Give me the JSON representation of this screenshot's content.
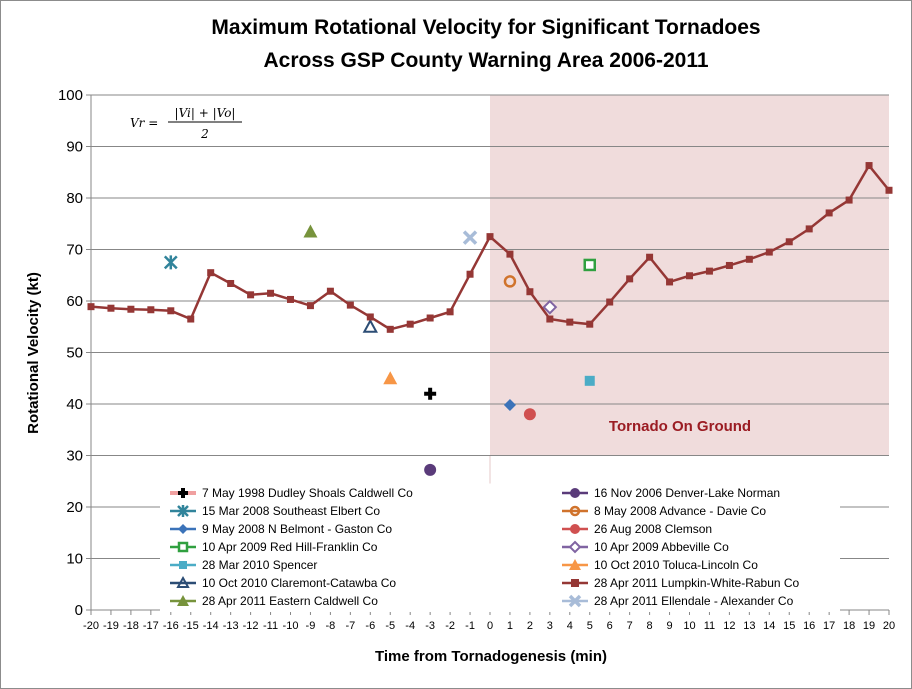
{
  "chart_data": {
    "type": "scatter",
    "title_line1": "Maximum Rotational Velocity for Significant Tornadoes",
    "title_line2": "Across GSP County Warning Area 2006-2011",
    "xlabel": "Time from Tornadogenesis (min)",
    "ylabel": "Rotational  Velocity  (kt)",
    "xlim": [
      -20,
      20
    ],
    "ylim": [
      0,
      100
    ],
    "yticks": [
      0,
      10,
      20,
      30,
      40,
      50,
      60,
      70,
      80,
      90,
      100
    ],
    "xticks": [
      -20,
      -19,
      -18,
      -17,
      -16,
      -15,
      -14,
      -13,
      -12,
      -11,
      -10,
      -9,
      -8,
      -7,
      -6,
      -5,
      -4,
      -3,
      -2,
      -1,
      0,
      1,
      2,
      3,
      4,
      5,
      6,
      7,
      8,
      9,
      10,
      11,
      12,
      13,
      14,
      15,
      16,
      17,
      18,
      19,
      20
    ],
    "grid": true,
    "shaded_region": {
      "x": [
        0,
        20
      ],
      "y": [
        30,
        100
      ],
      "color": "#f0dcdc",
      "label": "Tornado On Ground"
    },
    "formula": {
      "lhs": "Vr =",
      "numerator": "|Vi| + |Vo|",
      "denominator": "2"
    },
    "series": [
      {
        "name": "7 May 1998  Dudley Shoals Caldwell Co",
        "marker": "plus",
        "color": "#000000",
        "legend_color": "#f0a0a0",
        "x": [
          -3
        ],
        "y": [
          42
        ]
      },
      {
        "name": "16 Nov 2006  Denver-Lake Norman",
        "marker": "circle",
        "color": "#5a3b7a",
        "x": [
          -3
        ],
        "y": [
          27.2
        ]
      },
      {
        "name": "15 Mar 2008  Southeast Elbert Co",
        "marker": "star",
        "color": "#31849b",
        "x": [
          -16
        ],
        "y": [
          67.5
        ]
      },
      {
        "name": "8 May 2008  Advance - Davie Co",
        "marker": "circle-open",
        "color": "#d0732c",
        "x": [
          1
        ],
        "y": [
          63.8
        ]
      },
      {
        "name": "9 May 2008  N Belmont - Gaston Co",
        "marker": "diamond",
        "color": "#3b73b9",
        "x": [
          1
        ],
        "y": [
          39.8
        ]
      },
      {
        "name": "26 Aug 2008  Clemson",
        "marker": "circle",
        "color": "#d05050",
        "x": [
          2
        ],
        "y": [
          38
        ]
      },
      {
        "name": "10 Apr 2009  Red Hill-Franklin Co",
        "marker": "square-open",
        "color": "#30a040",
        "x": [
          5
        ],
        "y": [
          67
        ]
      },
      {
        "name": "10 Apr 2009  Abbeville Co",
        "marker": "diamond-open",
        "color": "#8064a2",
        "x": [
          3
        ],
        "y": [
          58.8
        ]
      },
      {
        "name": "28 Mar 2010  Spencer",
        "marker": "square",
        "color": "#4bacc6",
        "x": [
          5
        ],
        "y": [
          44.5
        ]
      },
      {
        "name": "10 Oct 2010  Toluca-Lincoln Co",
        "marker": "triangle",
        "color": "#f79646",
        "x": [
          -5
        ],
        "y": [
          45
        ]
      },
      {
        "name": "10 Oct 2010  Claremont-Catawba Co",
        "marker": "triangle-open",
        "color": "#2c4d75",
        "x": [
          -6
        ],
        "y": [
          55
        ]
      },
      {
        "name": "28 Apr 2011  Lumpkin-White-Rabun Co",
        "marker": "square",
        "line": true,
        "color": "#953735",
        "x": [
          -20,
          -19,
          -18,
          -17,
          -16,
          -15,
          -14,
          -13,
          -12,
          -11,
          -10,
          -9,
          -8,
          -7,
          -6,
          -5,
          -4,
          -3,
          -2,
          -1,
          0,
          1,
          2,
          3,
          4,
          5,
          6,
          7,
          8,
          9,
          10,
          11,
          12,
          13,
          14,
          15,
          16,
          17,
          18,
          19,
          20
        ],
        "y": [
          58.9,
          58.6,
          58.4,
          58.3,
          58.1,
          56.5,
          65.5,
          63.4,
          61.2,
          61.5,
          60.3,
          59.1,
          61.9,
          59.2,
          56.9,
          54.5,
          55.5,
          56.7,
          57.9,
          65.2,
          72.5,
          69.1,
          61.8,
          56.5,
          55.9,
          55.5,
          59.8,
          64.3,
          68.5,
          63.7,
          64.9,
          65.8,
          66.9,
          68.1,
          69.5,
          71.5,
          74,
          77.1,
          79.6,
          86.3,
          81.5
        ]
      },
      {
        "name": "28 Apr 2011  Eastern Caldwell Co",
        "marker": "triangle",
        "color": "#77933c",
        "x": [
          -9
        ],
        "y": [
          73.5
        ]
      },
      {
        "name": "28 Apr 2011  Ellendale - Alexander Co",
        "marker": "x",
        "color": "#a8bcd8",
        "x": [
          -1
        ],
        "y": [
          72.3
        ]
      }
    ]
  }
}
